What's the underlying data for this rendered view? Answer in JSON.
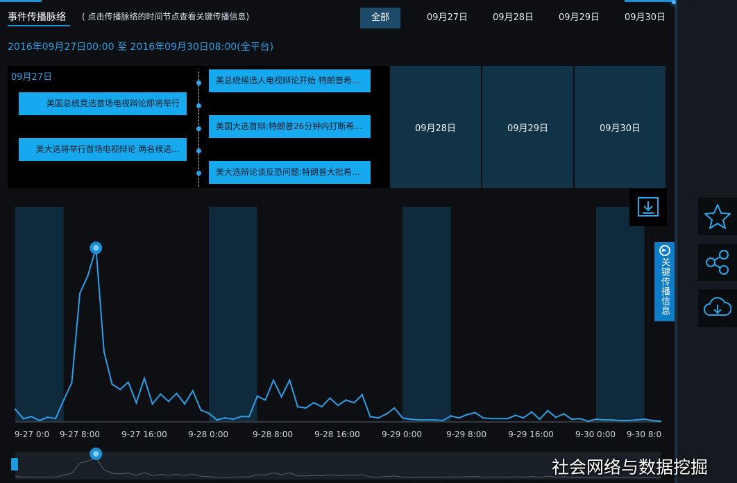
{
  "header": {
    "title": "事件传播脉络",
    "hint": "( 点击传播脉络的时间节点查看关键传播信息)"
  },
  "tabs": [
    {
      "label": "全部",
      "active": true
    },
    {
      "label": "09月27日",
      "active": false
    },
    {
      "label": "09月28日",
      "active": false
    },
    {
      "label": "09月29日",
      "active": false
    },
    {
      "label": "09月30日",
      "active": false
    }
  ],
  "range_text": "2016年09月27日00:00 至 2016年09月30日08:00(全平台)",
  "timeline": {
    "day_label": "09月27日",
    "events_left": [
      "美国总统竞选首场电视辩论即将举行",
      "美大选将举行首场电视辩论 两名候选..."
    ],
    "events_right": [
      "美总统候选人电视辩论开始 特朗普希...",
      "美国大选首辩:特朗普26分钟内打断希...",
      "美大选辩论谈反恐问题:特朗普大批希..."
    ],
    "days": [
      "09月28日",
      "09月29日",
      "09月30日"
    ]
  },
  "side_tag": "关键传播信息",
  "icons": {
    "download": "download-icon",
    "star": "star-icon",
    "share": "share-icon",
    "cloud": "cloud-download-icon"
  },
  "chart_data": {
    "type": "line",
    "x_ticks": [
      "9-27 0:0",
      "9-27 8:00",
      "9-27 16:00",
      "9-28 0:00",
      "9-28 8:00",
      "9-28 16:00",
      "9-29 0:00",
      "9-29 8:00",
      "9-29 16:00",
      "9-30 0:00",
      "9-30 8:0"
    ],
    "x": [
      0,
      1,
      2,
      3,
      4,
      5,
      6,
      7,
      8,
      9,
      10,
      11,
      12,
      13,
      14,
      15,
      16,
      17,
      18,
      19,
      20,
      21,
      22,
      23,
      24,
      25,
      26,
      27,
      28,
      29,
      30,
      31,
      32,
      33,
      34,
      35,
      36,
      37,
      38,
      39,
      40,
      41,
      42,
      43,
      44,
      45,
      46,
      47,
      48,
      49,
      50,
      51,
      52,
      53,
      54,
      55,
      56,
      57,
      58,
      59,
      60,
      61,
      62,
      63,
      64,
      65,
      66,
      67,
      68,
      69,
      70,
      71,
      72,
      73,
      74,
      75,
      76,
      77,
      78,
      79,
      80
    ],
    "values": [
      18,
      4,
      7,
      1,
      6,
      4,
      32,
      58,
      193,
      220,
      262,
      105,
      56,
      48,
      59,
      28,
      65,
      26,
      41,
      30,
      42,
      26,
      46,
      17,
      12,
      2,
      5,
      3,
      7,
      7,
      38,
      32,
      62,
      37,
      62,
      22,
      20,
      28,
      22,
      35,
      24,
      32,
      28,
      40,
      7,
      5,
      11,
      20,
      5,
      3,
      2,
      2,
      2,
      1,
      8,
      5,
      10,
      13,
      5,
      4,
      4,
      4,
      9,
      5,
      14,
      3,
      16,
      6,
      11,
      3,
      4,
      0,
      3,
      2,
      2,
      1,
      1,
      2,
      3,
      1,
      0
    ],
    "ylim": [
      0,
      280
    ],
    "peak_index": 10,
    "shaded_bands": [
      [
        0,
        6
      ],
      [
        24,
        30
      ],
      [
        48,
        54
      ],
      [
        72,
        78
      ]
    ],
    "colors": {
      "line": "#2f9ee6",
      "band": "#0f2a3b",
      "marker": "#1f8fd0"
    }
  },
  "watermark": "社会网络与数据挖掘"
}
